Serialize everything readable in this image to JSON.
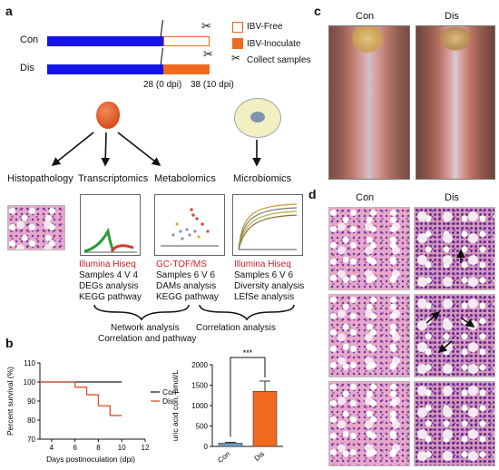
{
  "panels": {
    "a": "a",
    "b": "b",
    "c": "c",
    "d": "d"
  },
  "timeline": {
    "con_label": "Con",
    "dis_label": "Dis",
    "t28": "28 (0 dpi)",
    "t38": "38 (10 dpi)",
    "legend": [
      "IBV-Free",
      "IBV-Inoculate",
      "Collect samples"
    ],
    "colors": {
      "blue": "#1414e6",
      "free_border": "#e06a1a",
      "inoculate": "#f06a1e"
    }
  },
  "categories": [
    "Histopathology",
    "Transcriptomics",
    "Metabolomics",
    "Microbiomics"
  ],
  "methods": [
    {
      "name": "Illumina Hiseq",
      "lines": [
        "Samples 4 V 4",
        "DEGs analysis",
        "KEGG pathway"
      ]
    },
    {
      "name": "GC-TOF/MS",
      "lines": [
        "Samples 6 V 6",
        "DAMs analysis",
        "KEGG pathway"
      ]
    },
    {
      "name": "Illumina Hiseq",
      "lines": [
        "Samples 6 V 6",
        "Diversity analysis",
        "LEfSe analysis"
      ]
    }
  ],
  "integration": {
    "left_line1": "Network analysis",
    "left_line2": "Correlation and pathway",
    "right": "Correlation analysis"
  },
  "panel_c": {
    "con": "Con",
    "dis": "Dis"
  },
  "panel_d": {
    "con": "Con",
    "dis": "Dis"
  },
  "chart_data": [
    {
      "type": "line",
      "ylabel": "Percent survival (%)",
      "xlabel": "Days postinoculation (dpi)",
      "xticks": [
        4,
        6,
        8,
        10,
        12
      ],
      "yticks": [
        70,
        80,
        90,
        100,
        110
      ],
      "xlim": [
        3,
        12
      ],
      "ylim": [
        70,
        110
      ],
      "legend": "right",
      "series": [
        {
          "name": "Con",
          "color": "#222222",
          "x": [
            3,
            10
          ],
          "y": [
            100,
            100
          ]
        },
        {
          "name": "Dis",
          "color": "#e0502a",
          "x": [
            3,
            6,
            6,
            7,
            7,
            8,
            8,
            9,
            9,
            10
          ],
          "y": [
            100,
            100,
            97.3,
            97.3,
            93.3,
            93.3,
            87.5,
            87.5,
            82.4,
            82.4
          ]
        }
      ]
    },
    {
      "type": "bar",
      "ylabel": "uric acid con. μmol/L",
      "categories": [
        "Con",
        "Dis"
      ],
      "values": [
        80,
        1350
      ],
      "errors": [
        20,
        250
      ],
      "yticks": [
        0,
        500,
        1000,
        1500,
        2000
      ],
      "ylim": [
        0,
        2000
      ],
      "significance": "***",
      "colors": [
        "#6f9ec6",
        "#f06a1e"
      ]
    }
  ]
}
